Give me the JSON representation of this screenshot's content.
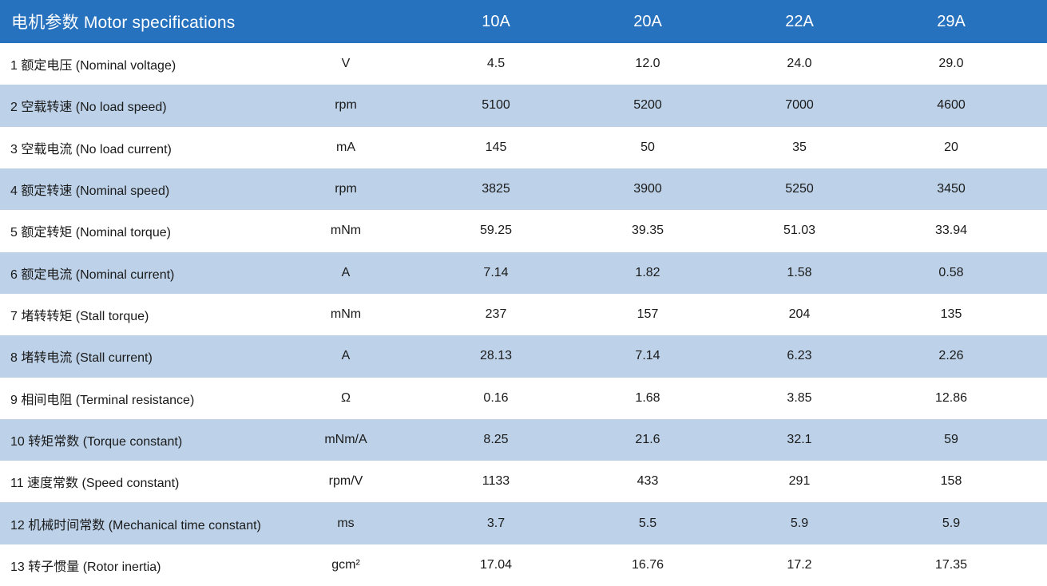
{
  "colors": {
    "header_bg": "#2672BE",
    "band_bg": "#BDD2E9",
    "header_text": "#FFFFFF",
    "body_text": "#1A1A1A"
  },
  "table": {
    "header": {
      "title": "电机参数  Motor specifications",
      "columns": [
        "10A",
        "20A",
        "22A",
        "29A"
      ]
    },
    "rows": [
      {
        "label": "1 额定电压 (Nominal voltage)",
        "unit": "V",
        "values": [
          "4.5",
          "12.0",
          "24.0",
          "29.0"
        ]
      },
      {
        "label": "2 空载转速 (No load speed)",
        "unit": "rpm",
        "values": [
          "5100",
          "5200",
          "7000",
          "4600"
        ]
      },
      {
        "label": "3 空载电流 (No load current)",
        "unit": "mA",
        "values": [
          "145",
          "50",
          "35",
          "20"
        ]
      },
      {
        "label": "4 额定转速 (Nominal speed)",
        "unit": "rpm",
        "values": [
          "3825",
          "3900",
          "5250",
          "3450"
        ]
      },
      {
        "label": "5 额定转矩 (Nominal torque)",
        "unit": "mNm",
        "values": [
          "59.25",
          "39.35",
          "51.03",
          "33.94"
        ]
      },
      {
        "label": "6 额定电流 (Nominal current)",
        "unit": "A",
        "values": [
          "7.14",
          "1.82",
          "1.58",
          "0.58"
        ]
      },
      {
        "label": "7 堵转转矩 (Stall torque)",
        "unit": "mNm",
        "values": [
          "237",
          "157",
          "204",
          "135"
        ]
      },
      {
        "label": "8 堵转电流 (Stall current)",
        "unit": "A",
        "values": [
          "28.13",
          "7.14",
          "6.23",
          "2.26"
        ]
      },
      {
        "label": "9 相间电阻 (Terminal resistance)",
        "unit": "Ω",
        "values": [
          "0.16",
          "1.68",
          "3.85",
          "12.86"
        ]
      },
      {
        "label": "10 转矩常数 (Torque constant)",
        "unit": "mNm/A",
        "values": [
          "8.25",
          "21.6",
          "32.1",
          "59"
        ]
      },
      {
        "label": "11 速度常数 (Speed constant)",
        "unit": "rpm/V",
        "values": [
          "1133",
          "433",
          "291",
          "158"
        ]
      },
      {
        "label": "12 机械时间常数 (Mechanical time constant)",
        "unit": "ms",
        "values": [
          "3.7",
          "5.5",
          "5.9",
          "5.9"
        ]
      },
      {
        "label": "13 转子惯量 (Rotor inertia)",
        "unit": "gcm²",
        "values": [
          "17.04",
          "16.76",
          "17.2",
          "17.35"
        ]
      }
    ]
  }
}
